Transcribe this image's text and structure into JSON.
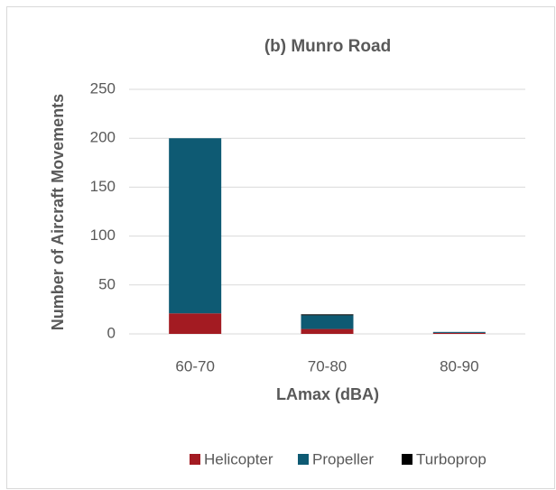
{
  "chart_data": {
    "type": "stacked_bar",
    "title": "(b) Munro Road",
    "x_label": "LAmax (dBA)",
    "y_label": "Number of Aircraft Movements",
    "categories": [
      "60-70",
      "70-80",
      "80-90"
    ],
    "series": [
      {
        "name": "Helicopter",
        "color": "#a31b22",
        "values": [
          21,
          5,
          1
        ]
      },
      {
        "name": "Propeller",
        "color": "#0e5a73",
        "values": [
          179,
          14,
          1
        ]
      },
      {
        "name": "Turboprop",
        "color": "#000000",
        "values": [
          0,
          1,
          0
        ]
      }
    ],
    "ylim": [
      0,
      250
    ],
    "yticks": [
      0,
      50,
      100,
      150,
      200,
      250
    ],
    "grid": true,
    "legend": "bottom"
  }
}
